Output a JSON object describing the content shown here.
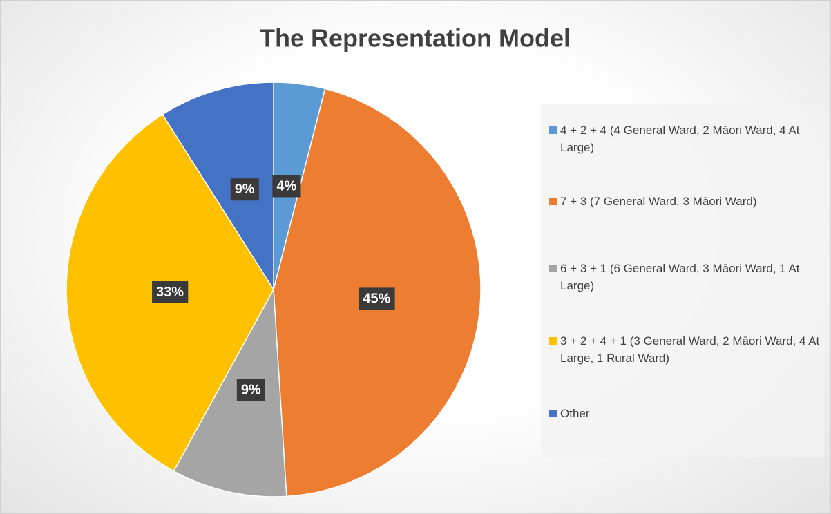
{
  "chart_data": {
    "type": "pie",
    "title": "The Representation Model",
    "categories": [
      "4 + 2 + 4 (4 General Ward, 2 Māori Ward, 4 At Large)",
      "7 + 3 (7 General Ward, 3 Māori Ward)",
      "6 + 3 + 1 (6 General Ward, 3 Māori Ward, 1 At Large)",
      "3 + 2 + 4 + 1 (3 General Ward, 2 Māori Ward, 4 At Large, 1 Rural Ward)",
      "Other"
    ],
    "values": [
      4,
      45,
      9,
      33,
      9
    ],
    "value_labels": [
      "4%",
      "45%",
      "9%",
      "33%",
      "9%"
    ],
    "colors": [
      "#5b9bd5",
      "#ed7d31",
      "#a5a5a5",
      "#ffc000",
      "#4472c4"
    ],
    "legend": "right"
  }
}
